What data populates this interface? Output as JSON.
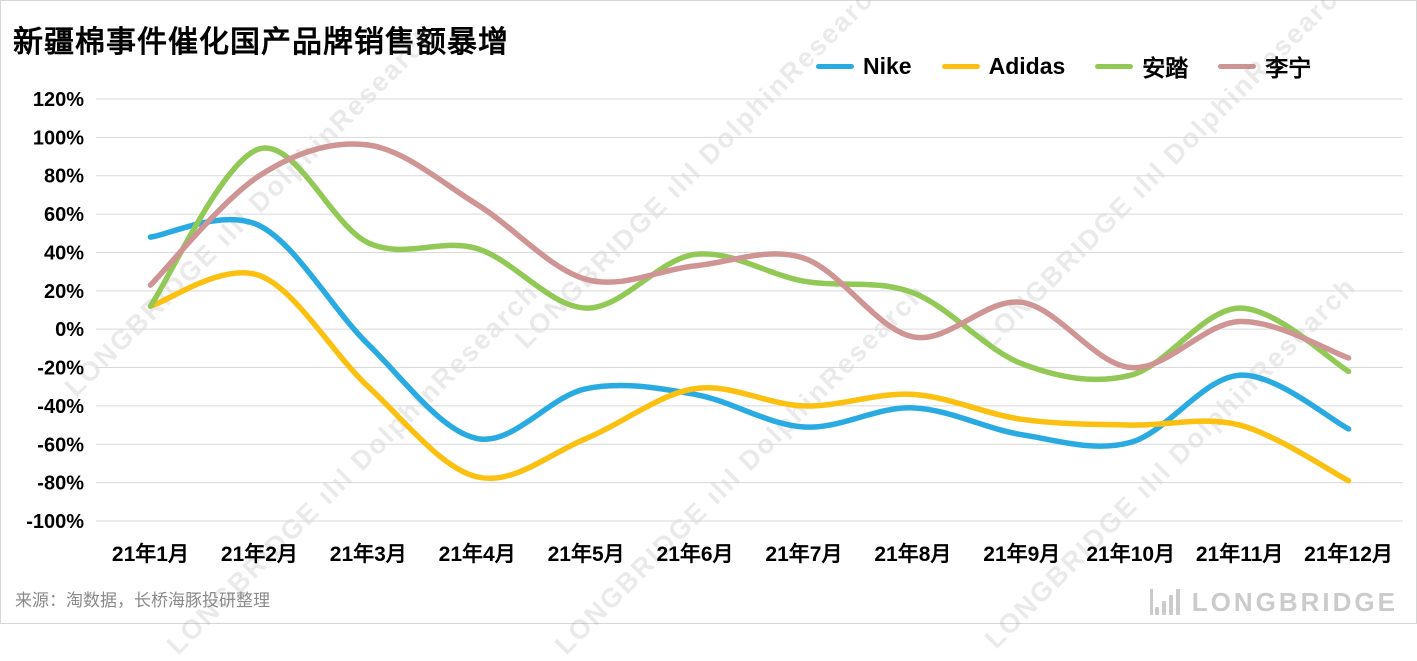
{
  "title": "新疆棉事件催化国产品牌销售额暴增",
  "source_note": "来源：淘数据，长桥海豚投研整理",
  "watermark": {
    "text": "LONGBRIDGE ılıl DolphinResearch"
  },
  "logo": {
    "text": "LONGBRIDGE"
  },
  "chart_data": {
    "type": "line",
    "title": "新疆棉事件催化国产品牌销售额暴增",
    "categories": [
      "21年1月",
      "21年2月",
      "21年3月",
      "21年4月",
      "21年5月",
      "21年6月",
      "21年7月",
      "21年8月",
      "21年9月",
      "21年10月",
      "21年11月",
      "21年12月"
    ],
    "series": [
      {
        "name": "Nike",
        "color": "#29abe2",
        "values": [
          48,
          54,
          -8,
          -57,
          -31,
          -34,
          -51,
          -41,
          -55,
          -59,
          -24,
          -52
        ]
      },
      {
        "name": "Adidas",
        "color": "#fcc011",
        "values": [
          12,
          28,
          -30,
          -77,
          -57,
          -31,
          -40,
          -34,
          -47,
          -50,
          -50,
          -79
        ]
      },
      {
        "name": "安踏",
        "color": "#92c956",
        "values": [
          12,
          94,
          45,
          42,
          11,
          39,
          25,
          19,
          -18,
          -24,
          11,
          -22
        ]
      },
      {
        "name": "李宁",
        "color": "#cf9494",
        "values": [
          23,
          80,
          96,
          65,
          26,
          33,
          37,
          -4,
          14,
          -20,
          4,
          -15
        ]
      }
    ],
    "ylim": [
      -100,
      120
    ],
    "ytick_step": 20,
    "ytick_format": "percent",
    "grid": "horizontal",
    "legend_position": "top",
    "xlabel": "",
    "ylabel": ""
  }
}
